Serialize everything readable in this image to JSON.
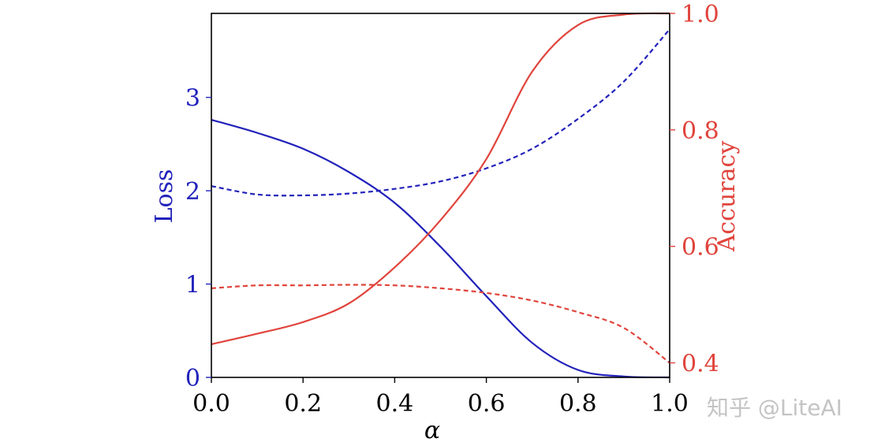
{
  "watermark": "知乎 @LiteAI",
  "chart_data": {
    "type": "line",
    "xlabel": "α",
    "ylabel_left": "Loss",
    "ylabel_right": "Accuracy",
    "xlim": [
      0.0,
      1.0
    ],
    "ylim_left": [
      0,
      3.9
    ],
    "ylim_right": [
      0.375,
      1.0
    ],
    "x_ticks": [
      "0.0",
      "0.2",
      "0.4",
      "0.6",
      "0.8",
      "1.0"
    ],
    "y_ticks_left": [
      "0",
      "1",
      "2",
      "3"
    ],
    "y_ticks_right": [
      "0.4",
      "0.6",
      "0.8",
      "1.0"
    ],
    "grid": false,
    "colors": {
      "loss": "#2222bb",
      "accuracy": "#e0443c"
    },
    "series": [
      {
        "axis": "left",
        "color": "#2222bb",
        "style": "solid",
        "x": [
          0.0,
          0.1,
          0.2,
          0.3,
          0.4,
          0.5,
          0.6,
          0.7,
          0.8,
          0.9,
          1.0
        ],
        "values": [
          2.76,
          2.62,
          2.45,
          2.2,
          1.87,
          1.4,
          0.87,
          0.37,
          0.08,
          0.01,
          0.0
        ]
      },
      {
        "axis": "left",
        "color": "#2222bb",
        "style": "dashed",
        "x": [
          0.0,
          0.1,
          0.2,
          0.3,
          0.4,
          0.5,
          0.6,
          0.7,
          0.8,
          0.9,
          1.0
        ],
        "values": [
          2.05,
          1.96,
          1.95,
          1.97,
          2.02,
          2.1,
          2.24,
          2.45,
          2.77,
          3.17,
          3.73
        ]
      },
      {
        "axis": "right",
        "color": "#e0443c",
        "style": "solid",
        "x": [
          0.0,
          0.1,
          0.2,
          0.3,
          0.4,
          0.5,
          0.6,
          0.7,
          0.8,
          0.9,
          1.0
        ],
        "values": [
          0.432,
          0.45,
          0.47,
          0.502,
          0.564,
          0.645,
          0.75,
          0.9,
          0.98,
          0.998,
          1.0
        ]
      },
      {
        "axis": "right",
        "color": "#e0443c",
        "style": "dashed",
        "x": [
          0.0,
          0.1,
          0.2,
          0.3,
          0.4,
          0.5,
          0.6,
          0.7,
          0.8,
          0.9,
          1.0
        ],
        "values": [
          0.528,
          0.533,
          0.533,
          0.534,
          0.533,
          0.528,
          0.52,
          0.507,
          0.487,
          0.46,
          0.4
        ]
      }
    ]
  }
}
